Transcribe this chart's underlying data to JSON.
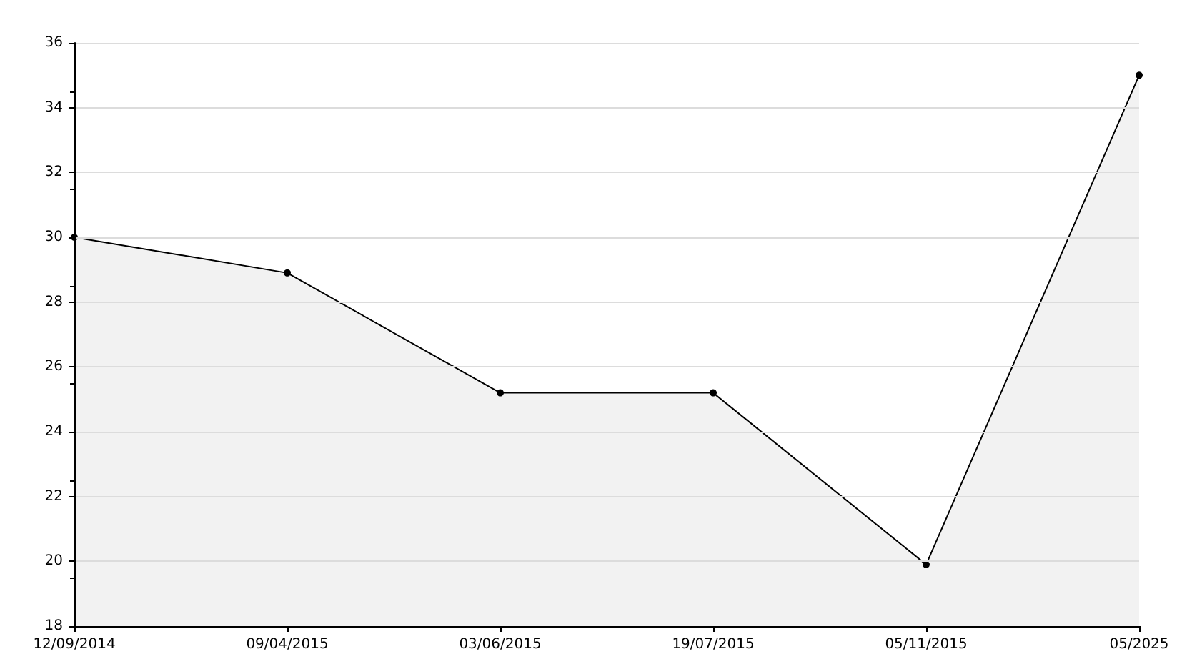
{
  "chart_data": {
    "type": "area",
    "categories": [
      "12/09/2014",
      "09/04/2015",
      "03/06/2015",
      "19/07/2015",
      "05/11/2015",
      "05/2025"
    ],
    "series": [
      {
        "color": "#000000",
        "values": [
          30,
          28.9,
          25.2,
          25.2,
          19.9,
          35
        ]
      }
    ],
    "ylim": [
      18,
      36
    ],
    "yticks": [
      18,
      20,
      22,
      24,
      26,
      28,
      30,
      32,
      34,
      36
    ],
    "grid": "y",
    "marker": "circle",
    "line_style": "solid"
  }
}
